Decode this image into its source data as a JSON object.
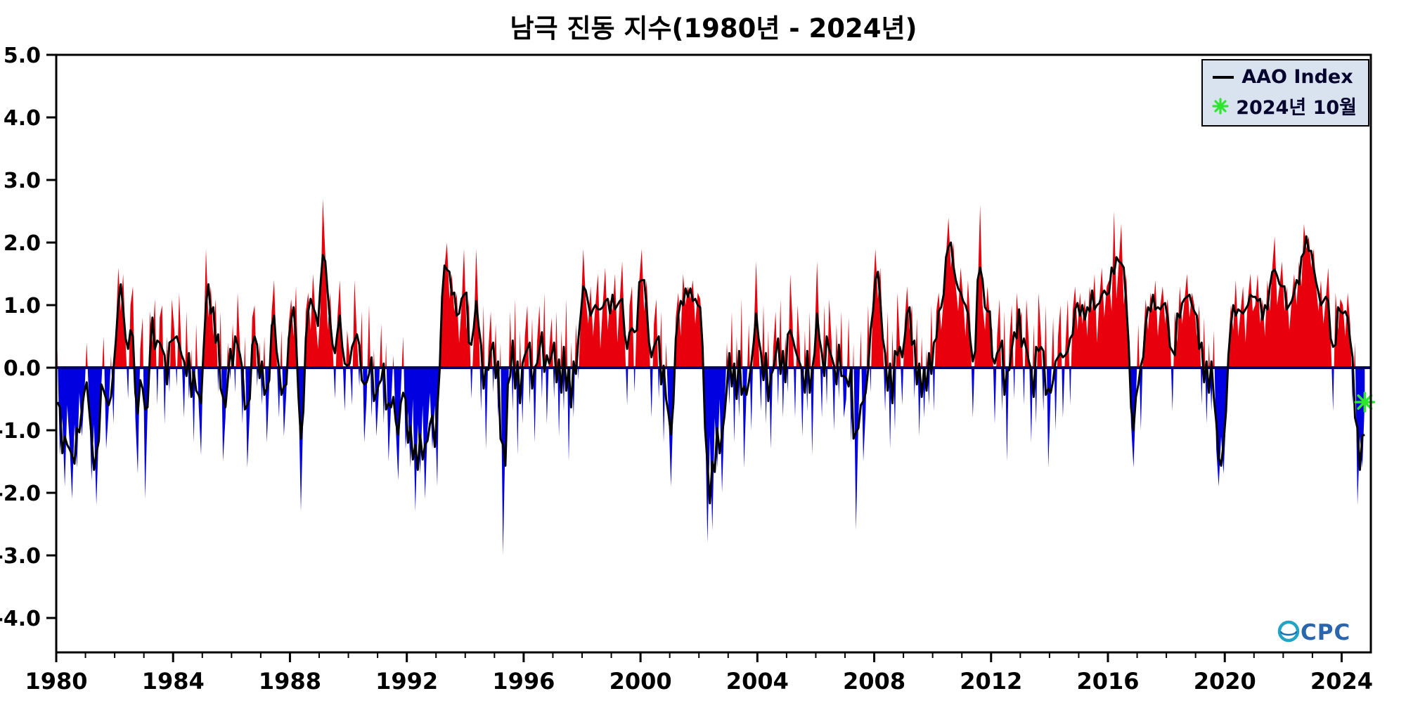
{
  "title": "남극 진동 지수(1980년 - 2024년)",
  "legend": {
    "line_label": "AAO Index",
    "marker_label": "2024년 10월"
  },
  "logo": {
    "text": "CPC"
  },
  "chart_data": {
    "type": "area",
    "title": "남극 진동 지수(1980년 - 2024년)",
    "xlabel": "",
    "ylabel": "",
    "x_start_year": 1980,
    "x_end": 2025,
    "ylim": [
      -4.55,
      5.0
    ],
    "yticks": [
      "5.0",
      "4.0",
      "3.0",
      "2.0",
      "1.0",
      "0.0",
      "-1.0",
      "-2.0",
      "-3.0",
      "-4.0"
    ],
    "ytick_values": [
      5,
      4,
      3,
      2,
      1,
      0,
      -1,
      -2,
      -3,
      -4
    ],
    "xticks": [
      "1980",
      "1984",
      "1988",
      "1992",
      "1996",
      "2000",
      "2004",
      "2008",
      "2012",
      "2016",
      "2020",
      "2024"
    ],
    "xtick_values": [
      1980,
      1984,
      1988,
      1992,
      1996,
      2000,
      2004,
      2008,
      2012,
      2016,
      2020,
      2024
    ],
    "grid": false,
    "legend_position": "top-right",
    "smoothing": "3-month running mean (black line); monthly values filled red above 0 / blue below 0",
    "highlight_point": {
      "label": "2024년 10월",
      "value": -0.55
    },
    "colors": {
      "positive_fill": "#e8000d",
      "negative_fill": "#0000e0",
      "line": "#000000",
      "zero_line": "#00006e",
      "marker": "#2de62d",
      "legend_bg": "#d9e3ef"
    },
    "monthly_values": [
      0.3,
      -1.4,
      -0.8,
      -1.9,
      -0.6,
      -1.2,
      -2.1,
      -0.9,
      -1.6,
      -0.4,
      -1.1,
      -0.5,
      0.4,
      -0.6,
      -1.8,
      -0.9,
      -2.2,
      -1.0,
      -0.3,
      0.5,
      -1.3,
      -0.7,
      0.2,
      -0.9,
      0.6,
      1.6,
      0.9,
      1.5,
      0.4,
      -0.5,
      1.0,
      1.3,
      -0.8,
      -1.7,
      0.3,
      0.8,
      -2.1,
      -0.7,
      0.9,
      0.4,
      1.1,
      -0.6,
      0.8,
      1.0,
      -0.9,
      0.5,
      -0.4,
      1.1,
      0.6,
      -0.3,
      1.2,
      0.2,
      -0.8,
      0.9,
      -0.5,
      0.3,
      -1.2,
      0.7,
      -0.6,
      -1.4,
      0.3,
      1.9,
      0.8,
      1.3,
      0.5,
      1.1,
      -0.4,
      0.9,
      -1.5,
      -0.8,
      0.4,
      -0.2,
      0.7,
      -0.4,
      1.2,
      0.3,
      -0.9,
      0.5,
      -1.6,
      -0.7,
      0.8,
      1.0,
      -0.3,
      0.4,
      -0.6,
      0.5,
      -1.2,
      -0.3,
      0.9,
      1.4,
      0.2,
      -0.8,
      0.6,
      -1.1,
      -0.4,
      0.7,
      1.1,
      0.5,
      1.3,
      -0.4,
      -2.3,
      -0.7,
      0.9,
      1.2,
      0.6,
      1.5,
      0.8,
      0.3,
      0.9,
      2.7,
      1.8,
      0.6,
      1.2,
      0.4,
      -0.5,
      0.8,
      1.4,
      0.3,
      -0.7,
      0.6,
      0.2,
      -0.6,
      1.4,
      0.5,
      -0.3,
      0.9,
      -1.2,
      -0.5,
      1.0,
      -0.8,
      0.3,
      -1.1,
      -0.4,
      0.7,
      -0.9,
      0.4,
      -1.5,
      -0.6,
      0.2,
      -1.0,
      -1.8,
      -0.4,
      0.5,
      -1.3,
      -0.7,
      -1.6,
      -0.5,
      -2.3,
      -0.9,
      -1.7,
      -0.6,
      -2.1,
      -1.0,
      -0.4,
      -1.3,
      -0.6,
      -1.9,
      0.5,
      1.3,
      1.6,
      2.0,
      1.1,
      1.5,
      0.9,
      1.2,
      0.4,
      1.0,
      1.9,
      0.6,
      1.1,
      -0.5,
      0.5,
      1.9,
      0.8,
      -0.7,
      1.0,
      -1.3,
      0.3,
      0.9,
      -0.4,
      0.7,
      -0.8,
      0.4,
      -3.0,
      -1.1,
      -0.6,
      0.9,
      -0.7,
      1.1,
      -1.4,
      0.6,
      -0.9,
      0.5,
      1.0,
      -0.6,
      0.8,
      -1.2,
      0.4,
      1.0,
      -0.5,
      1.2,
      -0.9,
      0.3,
      0.8,
      -0.5,
      0.9,
      -1.1,
      0.6,
      -0.7,
      1.1,
      -1.5,
      0.4,
      -0.8,
      0.7,
      -0.2,
      0.9,
      1.9,
      1.1,
      0.7,
      1.3,
      0.5,
      1.0,
      1.5,
      0.3,
      1.0,
      1.6,
      0.6,
      1.1,
      0.9,
      1.5,
      0.4,
      1.1,
      1.7,
      0.5,
      -0.6,
      1.0,
      1.3,
      -0.4,
      0.8,
      1.4,
      1.9,
      0.9,
      1.4,
      0.6,
      -0.8,
      0.7,
      1.1,
      -0.5,
      0.9,
      -1.2,
      0.4,
      -0.7,
      -1.9,
      -0.6,
      0.8,
      1.2,
      0.5,
      1.5,
      1.0,
      1.3,
      1.1,
      1.4,
      0.7,
      1.2,
      1.1,
      0.6,
      -0.7,
      -2.8,
      -1.1,
      -2.6,
      -0.8,
      -1.6,
      -0.5,
      -2.0,
      -0.7,
      0.4,
      -0.6,
      0.9,
      -1.2,
      0.5,
      -0.8,
      1.1,
      -1.6,
      -0.4,
      0.7,
      -1.0,
      0.5,
      1.7,
      0.4,
      -0.7,
      1.0,
      -0.9,
      0.6,
      -1.3,
      0.3,
      0.9,
      -0.6,
      1.1,
      -0.8,
      0.5,
      -0.4,
      1.5,
      0.7,
      -0.8,
      1.0,
      0.3,
      -1.1,
      0.6,
      -0.7,
      0.9,
      -1.4,
      0.4,
      1.7,
      0.5,
      -0.8,
      1.0,
      -0.6,
      1.1,
      0.4,
      -1.0,
      0.7,
      -0.5,
      0.9,
      -0.8,
      -0.5,
      0.8,
      -1.2,
      0.4,
      -2.6,
      -0.9,
      0.6,
      -1.5,
      -0.7,
      1.0,
      -0.4,
      1.2,
      1.9,
      1.1,
      1.6,
      0.5,
      -0.7,
      0.9,
      -1.3,
      0.6,
      -1.0,
      1.2,
      0.4,
      -0.6,
      0.7,
      1.3,
      0.6,
      1.0,
      -0.5,
      0.8,
      -1.1,
      0.5,
      -0.8,
      0.3,
      -0.6,
      1.0,
      -0.7,
      0.9,
      1.2,
      0.6,
      1.1,
      1.8,
      2.4,
      1.6,
      2.0,
      1.3,
      0.9,
      1.6,
      1.1,
      0.5,
      1.4,
      0.7,
      -0.8,
      0.4,
      1.2,
      2.6,
      1.0,
      0.6,
      1.3,
      0.8,
      0.6,
      -0.9,
      0.5,
      1.1,
      -0.7,
      0.9,
      -1.5,
      0.4,
      1.0,
      -0.5,
      1.2,
      0.7,
      0.9,
      -0.6,
      1.1,
      0.4,
      -1.2,
      0.7,
      -0.9,
      1.2,
      0.5,
      -0.7,
      1.0,
      -1.6,
      -0.4,
      0.8,
      -1.0,
      0.5,
      1.0,
      -0.8,
      0.3,
      1.1,
      -0.6,
      0.9,
      1.3,
      0.6,
      1.2,
      0.7,
      1.1,
      0.5,
      1.3,
      0.9,
      1.5,
      0.4,
      1.1,
      1.6,
      0.8,
      1.3,
      1.4,
      0.9,
      2.5,
      1.1,
      1.7,
      2.3,
      1.0,
      1.5,
      0.6,
      -0.9,
      -1.6,
      -0.5,
      0.7,
      -1.0,
      0.4,
      1.1,
      0.6,
      1.2,
      0.9,
      1.4,
      0.5,
      1.0,
      1.3,
      0.7,
      1.1,
      0.6,
      -0.7,
      0.9,
      0.4,
      1.3,
      0.7,
      1.1,
      1.5,
      0.8,
      1.2,
      1.0,
      0.5,
      1.0,
      -0.6,
      0.8,
      -0.9,
      0.4,
      -0.7,
      0.6,
      -1.3,
      -1.9,
      -1.1,
      -1.7,
      -0.8,
      0.4,
      1.0,
      0.6,
      1.4,
      0.5,
      0.9,
      1.3,
      0.4,
      1.1,
      1.5,
      0.9,
      1.0,
      1.5,
      0.7,
      1.1,
      0.5,
      1.4,
      0.9,
      1.6,
      2.1,
      1.0,
      1.3,
      1.7,
      0.9,
      1.3,
      0.6,
      1.1,
      1.5,
      1.0,
      1.7,
      1.3,
      2.3,
      1.9,
      2.1,
      1.6,
      1.9,
      1.3,
      0.9,
      1.4,
      0.7,
      1.1,
      1.6,
      0.5,
      -0.7,
      1.2,
      0.6,
      1.1,
      1.0,
      0.5,
      1.2,
      0.7,
      -0.6,
      0.4,
      -2.2,
      -1.1,
      -1.6,
      -0.55
    ]
  }
}
